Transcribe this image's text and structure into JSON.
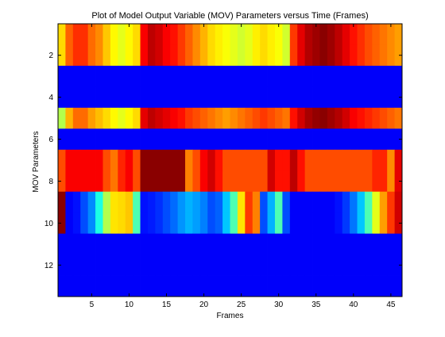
{
  "chart_data": {
    "type": "heatmap",
    "title": "Plot of Model Output Variable (MOV) Parameters versus Time (Frames)",
    "xlabel": "Frames",
    "ylabel": "MOV Parameters",
    "x_ticks": [
      5,
      10,
      15,
      20,
      25,
      30,
      35,
      40,
      45
    ],
    "y_ticks": [
      2,
      4,
      6,
      8,
      10,
      12
    ],
    "xlim": [
      0.5,
      46.5
    ],
    "ylim": [
      13.5,
      0.5
    ],
    "n_frames": 46,
    "n_params": 13,
    "colormap": "jet",
    "clim": [
      0,
      1
    ],
    "rows": [
      {
        "param": 1,
        "values": [
          0.66,
          0.78,
          0.83,
          0.83,
          0.77,
          0.74,
          0.68,
          0.63,
          0.6,
          0.63,
          0.66,
          0.88,
          0.94,
          0.92,
          0.88,
          0.86,
          0.82,
          0.78,
          0.74,
          0.7,
          0.66,
          0.64,
          0.62,
          0.6,
          0.58,
          0.6,
          0.64,
          0.66,
          0.64,
          0.62,
          0.58,
          0.82,
          0.9,
          0.95,
          0.97,
          0.99,
          0.97,
          0.94,
          0.9,
          0.86,
          0.83,
          0.8,
          0.78,
          0.76,
          0.74,
          0.72
        ]
      },
      {
        "param": 2,
        "values": [
          0.66,
          0.78,
          0.83,
          0.83,
          0.77,
          0.74,
          0.68,
          0.63,
          0.6,
          0.63,
          0.66,
          0.88,
          0.94,
          0.92,
          0.88,
          0.86,
          0.82,
          0.78,
          0.74,
          0.7,
          0.66,
          0.64,
          0.62,
          0.6,
          0.58,
          0.6,
          0.64,
          0.66,
          0.64,
          0.62,
          0.58,
          0.82,
          0.9,
          0.95,
          0.97,
          0.99,
          0.97,
          0.94,
          0.9,
          0.86,
          0.83,
          0.8,
          0.78,
          0.76,
          0.74,
          0.72
        ]
      },
      {
        "param": 3,
        "values": [
          0.12,
          0.12,
          0.12,
          0.12,
          0.12,
          0.12,
          0.12,
          0.12,
          0.12,
          0.12,
          0.12,
          0.12,
          0.12,
          0.12,
          0.12,
          0.12,
          0.12,
          0.12,
          0.12,
          0.12,
          0.12,
          0.12,
          0.12,
          0.12,
          0.12,
          0.12,
          0.12,
          0.12,
          0.12,
          0.12,
          0.12,
          0.12,
          0.12,
          0.12,
          0.12,
          0.12,
          0.12,
          0.12,
          0.12,
          0.12,
          0.12,
          0.12,
          0.12,
          0.12,
          0.12,
          0.12
        ]
      },
      {
        "param": 4,
        "values": [
          0.12,
          0.12,
          0.12,
          0.12,
          0.12,
          0.12,
          0.12,
          0.12,
          0.12,
          0.12,
          0.12,
          0.12,
          0.12,
          0.12,
          0.12,
          0.12,
          0.12,
          0.12,
          0.12,
          0.12,
          0.12,
          0.12,
          0.12,
          0.12,
          0.12,
          0.12,
          0.12,
          0.12,
          0.12,
          0.12,
          0.12,
          0.12,
          0.12,
          0.12,
          0.12,
          0.12,
          0.12,
          0.12,
          0.12,
          0.12,
          0.12,
          0.12,
          0.12,
          0.12,
          0.12,
          0.12
        ]
      },
      {
        "param": 5,
        "values": [
          0.55,
          0.7,
          0.77,
          0.77,
          0.72,
          0.69,
          0.66,
          0.63,
          0.6,
          0.63,
          0.66,
          0.9,
          0.94,
          0.92,
          0.9,
          0.88,
          0.86,
          0.82,
          0.8,
          0.78,
          0.76,
          0.74,
          0.72,
          0.74,
          0.76,
          0.78,
          0.8,
          0.82,
          0.8,
          0.78,
          0.76,
          0.86,
          0.92,
          0.96,
          0.98,
          0.99,
          0.97,
          0.95,
          0.92,
          0.88,
          0.86,
          0.84,
          0.82,
          0.8,
          0.78,
          0.76
        ]
      },
      {
        "param": 6,
        "values": [
          0.12,
          0.12,
          0.12,
          0.12,
          0.12,
          0.12,
          0.12,
          0.12,
          0.12,
          0.12,
          0.12,
          0.12,
          0.12,
          0.12,
          0.12,
          0.12,
          0.12,
          0.12,
          0.12,
          0.12,
          0.12,
          0.12,
          0.12,
          0.12,
          0.12,
          0.12,
          0.12,
          0.12,
          0.12,
          0.12,
          0.12,
          0.12,
          0.12,
          0.12,
          0.12,
          0.12,
          0.12,
          0.12,
          0.12,
          0.12,
          0.12,
          0.12,
          0.12,
          0.12,
          0.12,
          0.12
        ]
      },
      {
        "param": 7,
        "values": [
          0.8,
          0.88,
          0.88,
          0.88,
          0.88,
          0.88,
          0.8,
          0.76,
          0.84,
          0.88,
          0.8,
          0.99,
          0.99,
          0.99,
          0.99,
          0.99,
          0.99,
          0.75,
          0.8,
          0.88,
          0.92,
          0.86,
          0.8,
          0.8,
          0.8,
          0.8,
          0.8,
          0.8,
          0.92,
          0.86,
          0.86,
          0.94,
          0.86,
          0.8,
          0.8,
          0.8,
          0.8,
          0.8,
          0.8,
          0.8,
          0.8,
          0.8,
          0.84,
          0.84,
          0.74,
          0.9
        ]
      },
      {
        "param": 8,
        "values": [
          0.8,
          0.88,
          0.88,
          0.88,
          0.88,
          0.88,
          0.8,
          0.76,
          0.84,
          0.88,
          0.8,
          0.99,
          0.99,
          0.99,
          0.99,
          0.99,
          0.99,
          0.75,
          0.8,
          0.88,
          0.92,
          0.86,
          0.8,
          0.8,
          0.8,
          0.8,
          0.8,
          0.8,
          0.92,
          0.86,
          0.86,
          0.94,
          0.86,
          0.8,
          0.8,
          0.8,
          0.8,
          0.8,
          0.8,
          0.8,
          0.8,
          0.8,
          0.84,
          0.84,
          0.74,
          0.9
        ]
      },
      {
        "param": 9,
        "values": [
          0.99,
          0.12,
          0.14,
          0.2,
          0.26,
          0.4,
          0.55,
          0.65,
          0.66,
          0.68,
          0.45,
          0.14,
          0.15,
          0.17,
          0.2,
          0.23,
          0.27,
          0.3,
          0.28,
          0.25,
          0.2,
          0.22,
          0.32,
          0.45,
          0.65,
          0.82,
          0.75,
          0.2,
          0.3,
          0.45,
          0.2,
          0.12,
          0.12,
          0.12,
          0.12,
          0.12,
          0.12,
          0.14,
          0.18,
          0.24,
          0.32,
          0.45,
          0.6,
          0.72,
          0.82,
          0.92
        ]
      },
      {
        "param": 10,
        "values": [
          0.99,
          0.12,
          0.14,
          0.2,
          0.26,
          0.4,
          0.55,
          0.65,
          0.66,
          0.68,
          0.45,
          0.14,
          0.15,
          0.17,
          0.2,
          0.23,
          0.27,
          0.3,
          0.28,
          0.25,
          0.2,
          0.22,
          0.32,
          0.45,
          0.65,
          0.82,
          0.75,
          0.2,
          0.3,
          0.45,
          0.2,
          0.12,
          0.12,
          0.12,
          0.12,
          0.12,
          0.12,
          0.14,
          0.18,
          0.24,
          0.32,
          0.45,
          0.6,
          0.72,
          0.82,
          0.92
        ]
      },
      {
        "param": 11,
        "values": [
          0.12,
          0.12,
          0.12,
          0.12,
          0.12,
          0.12,
          0.12,
          0.12,
          0.12,
          0.12,
          0.12,
          0.12,
          0.12,
          0.12,
          0.12,
          0.12,
          0.12,
          0.12,
          0.12,
          0.12,
          0.12,
          0.12,
          0.12,
          0.12,
          0.12,
          0.12,
          0.12,
          0.12,
          0.12,
          0.12,
          0.12,
          0.12,
          0.12,
          0.12,
          0.12,
          0.12,
          0.12,
          0.12,
          0.12,
          0.12,
          0.12,
          0.12,
          0.12,
          0.12,
          0.12,
          0.12
        ]
      },
      {
        "param": 12,
        "values": [
          0.12,
          0.12,
          0.12,
          0.12,
          0.12,
          0.12,
          0.12,
          0.12,
          0.12,
          0.12,
          0.12,
          0.12,
          0.12,
          0.12,
          0.12,
          0.12,
          0.12,
          0.12,
          0.12,
          0.12,
          0.12,
          0.12,
          0.12,
          0.12,
          0.12,
          0.12,
          0.12,
          0.12,
          0.12,
          0.12,
          0.12,
          0.12,
          0.12,
          0.12,
          0.12,
          0.12,
          0.12,
          0.12,
          0.12,
          0.12,
          0.12,
          0.12,
          0.12,
          0.12,
          0.12,
          0.12
        ]
      },
      {
        "param": 13,
        "values": [
          0.12,
          0.12,
          0.12,
          0.12,
          0.12,
          0.12,
          0.12,
          0.12,
          0.12,
          0.12,
          0.12,
          0.12,
          0.12,
          0.12,
          0.12,
          0.12,
          0.12,
          0.12,
          0.12,
          0.12,
          0.12,
          0.12,
          0.12,
          0.12,
          0.12,
          0.12,
          0.12,
          0.12,
          0.12,
          0.12,
          0.12,
          0.12,
          0.12,
          0.12,
          0.12,
          0.12,
          0.12,
          0.12,
          0.12,
          0.12,
          0.12,
          0.12,
          0.12,
          0.12,
          0.12,
          0.12
        ]
      }
    ]
  }
}
